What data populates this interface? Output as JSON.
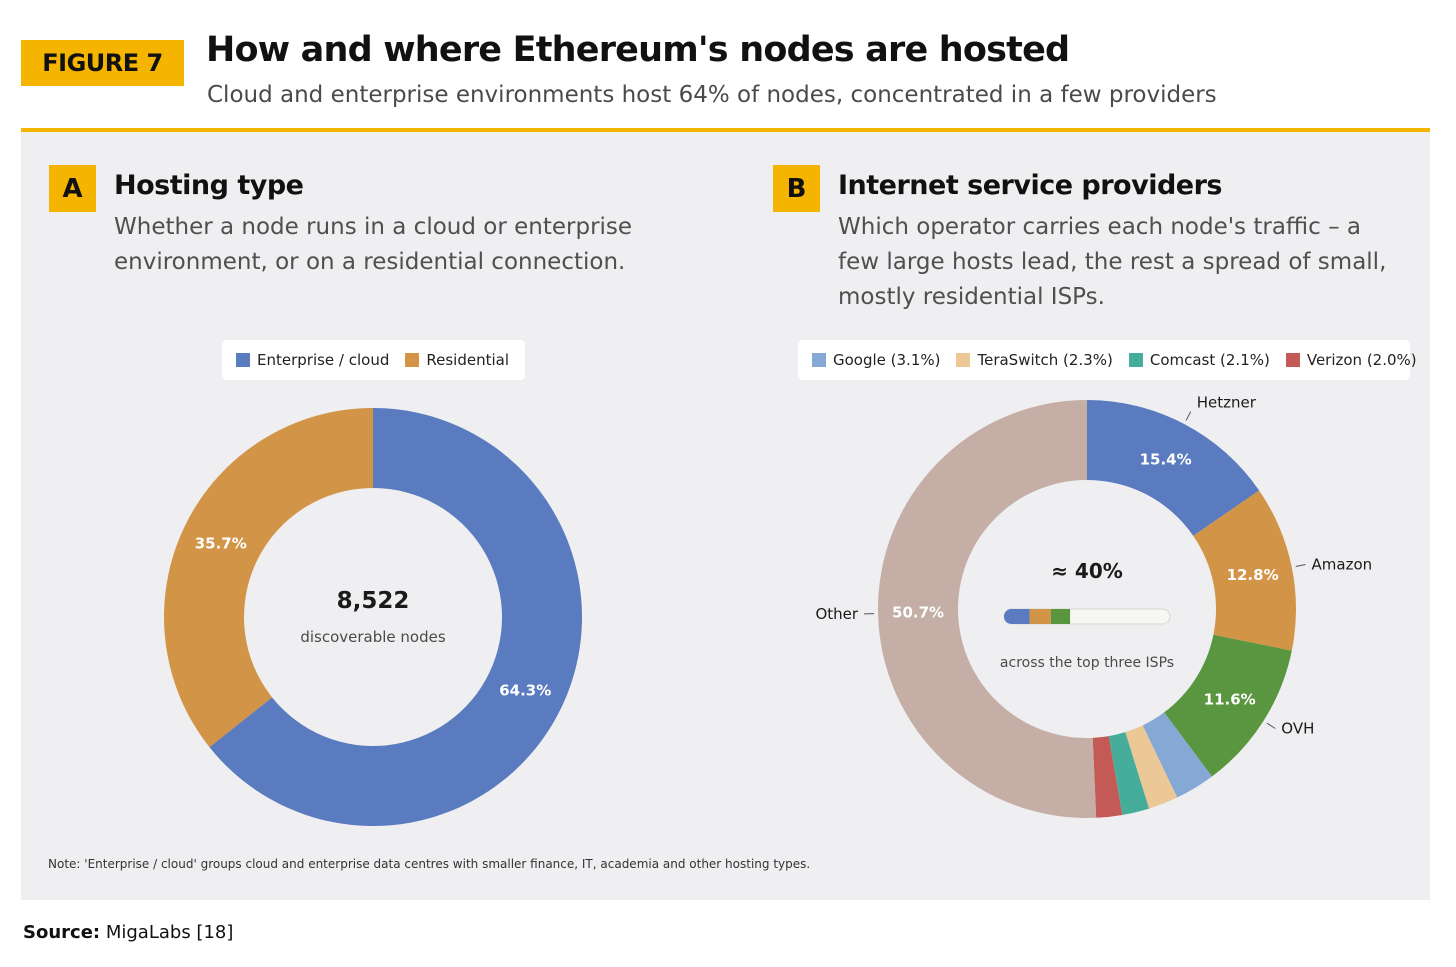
{
  "header": {
    "figure_label": "FIGURE 7",
    "title": "How and where Ethereum's nodes are hosted",
    "subtitle": "Cloud and enterprise environments host 64% of nodes, concentrated in a few providers"
  },
  "panel_a": {
    "letter": "A",
    "title": "Hosting type",
    "description": "Whether a node runs in a cloud or enterprise environment, or on a residential connection.",
    "center_value": "8,522",
    "center_label": "discoverable nodes"
  },
  "panel_b": {
    "letter": "B",
    "title": "Internet service providers",
    "description": "Which operator carries each node's traffic – a few large hosts lead, the rest a spread of small, mostly residential ISPs.",
    "center_value": "≈ 40%",
    "center_label": "across the top three ISPs"
  },
  "note": "Note: 'Enterprise / cloud' groups cloud and enterprise data centres with smaller finance, IT, academia and other hosting types.",
  "source": {
    "label": "Source:",
    "text": "MigaLabs [18]"
  },
  "chart_data": [
    {
      "type": "pie",
      "variant": "donut",
      "series": [
        {
          "name": "Enterprise / cloud",
          "value": 64.3,
          "label": "64.3%",
          "color": "#5a7bbf"
        },
        {
          "name": "Residential",
          "value": 35.7,
          "label": "35.7%",
          "color": "#d29446"
        }
      ],
      "legend": [
        {
          "label": "Enterprise / cloud",
          "color": "#5a7bbf"
        },
        {
          "label": "Residential",
          "color": "#d29446"
        }
      ],
      "legend_position": "top"
    },
    {
      "type": "pie",
      "variant": "donut",
      "series": [
        {
          "name": "Hetzner",
          "value": 15.4,
          "label": "15.4%",
          "color": "#5a7bbf"
        },
        {
          "name": "Amazon",
          "value": 12.8,
          "label": "12.8%",
          "color": "#d29446"
        },
        {
          "name": "OVH",
          "value": 11.6,
          "label": "11.6%",
          "color": "#5a9640"
        },
        {
          "name": "Google (3.1%)",
          "value": 3.1,
          "label": "",
          "color": "#85a8d4"
        },
        {
          "name": "TeraSwitch (2.3%)",
          "value": 2.3,
          "label": "",
          "color": "#ecc897"
        },
        {
          "name": "Comcast (2.1%)",
          "value": 2.1,
          "label": "",
          "color": "#46ad9a"
        },
        {
          "name": "Verizon (2.0%)",
          "value": 2.0,
          "label": "",
          "color": "#c35a55"
        },
        {
          "name": "Other",
          "value": 50.7,
          "label": "50.7%",
          "color": "#c4aea6"
        }
      ],
      "outside_labels": [
        "Hetzner",
        "Amazon",
        "OVH",
        "Other"
      ],
      "legend": [
        {
          "label": "Google (3.1%)",
          "color": "#85a8d4"
        },
        {
          "label": "TeraSwitch (2.3%)",
          "color": "#ecc897"
        },
        {
          "label": "Comcast (2.1%)",
          "color": "#46ad9a"
        },
        {
          "label": "Verizon (2.0%)",
          "color": "#c35a55"
        }
      ],
      "legend_position": "top",
      "center_bar": [
        {
          "value": 15.4,
          "color": "#5a7bbf"
        },
        {
          "value": 12.8,
          "color": "#d29446"
        },
        {
          "value": 11.6,
          "color": "#5a9640"
        }
      ]
    }
  ]
}
